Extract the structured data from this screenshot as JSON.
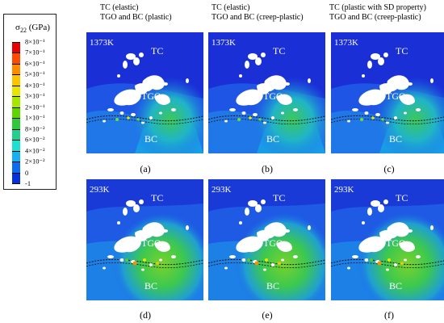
{
  "legend": {
    "title": "σ",
    "title_sub": "22",
    "title_unit": " (GPa)",
    "levels": [
      {
        "label": "8×10⁻¹",
        "color": "#e60000"
      },
      {
        "label": "7×10⁻¹",
        "color": "#ff4a00"
      },
      {
        "label": "6×10⁻¹",
        "color": "#ff8c00"
      },
      {
        "label": "5×10⁻¹",
        "color": "#ffc400"
      },
      {
        "label": "4×10⁻¹",
        "color": "#e6e600"
      },
      {
        "label": "3×10⁻¹",
        "color": "#a6e600"
      },
      {
        "label": "2×10⁻¹",
        "color": "#5ed400"
      },
      {
        "label": "1×10⁻¹",
        "color": "#2fc83a"
      },
      {
        "label": "8×10⁻²",
        "color": "#20d08c"
      },
      {
        "label": "6×10⁻²",
        "color": "#1de0d0"
      },
      {
        "label": "4×10⁻²",
        "color": "#16b0f0"
      },
      {
        "label": "2×10⁻²",
        "color": "#0a6cf0"
      },
      {
        "label": "0",
        "color": "#0033dd"
      },
      {
        "label": "-1",
        "color": "#0000b8"
      }
    ]
  },
  "headers": [
    {
      "line1": "TC (elastic)",
      "line2": "TGO and BC (plastic)"
    },
    {
      "line1": "TC (elastic)",
      "line2": "TGO and BC (creep-plastic)"
    },
    {
      "line1": "TC (plastic with SD property)",
      "line2": "TGO and BC (creep-plastic)"
    }
  ],
  "panels": [
    {
      "caption": "(a)",
      "temperature": "1373K",
      "tc": "TC",
      "tgo": "TGO",
      "bc": "BC"
    },
    {
      "caption": "(b)",
      "temperature": "1373K",
      "tc": "TC",
      "tgo": "TGO",
      "bc": "BC"
    },
    {
      "caption": "(c)",
      "temperature": "1373K",
      "tc": "TC",
      "tgo": "TGO",
      "bc": "BC"
    },
    {
      "caption": "(d)",
      "temperature": "293K",
      "tc": "TC",
      "tgo": "TGO",
      "bc": "BC"
    },
    {
      "caption": "(e)",
      "temperature": "293K",
      "tc": "TC",
      "tgo": "TGO",
      "bc": "BC"
    },
    {
      "caption": "(f)",
      "temperature": "293K",
      "tc": "TC",
      "tgo": "TGO",
      "bc": "BC"
    }
  ]
}
